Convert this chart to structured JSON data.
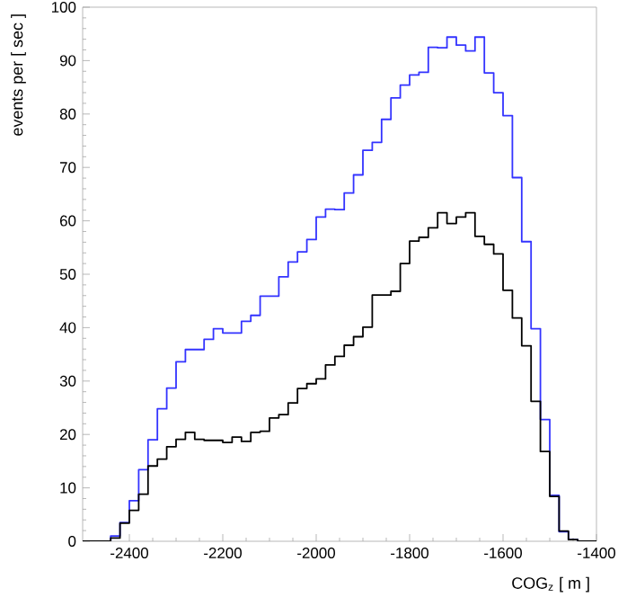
{
  "chart_data": {
    "type": "histogram",
    "xlabel": "COG$_{z}$ [ m ]",
    "ylabel": "events per [ sec ]",
    "bins": [
      -2500,
      -2480,
      -2460,
      -2440,
      -2420,
      -2400,
      -2380,
      -2360,
      -2340,
      -2320,
      -2300,
      -2280,
      -2260,
      -2240,
      -2220,
      -2200,
      -2180,
      -2160,
      -2140,
      -2120,
      -2100,
      -2080,
      -2060,
      -2040,
      -2020,
      -2000,
      -1980,
      -1960,
      -1940,
      -1920,
      -1900,
      -1880,
      -1860,
      -1840,
      -1820,
      -1800,
      -1780,
      -1760,
      -1740,
      -1720,
      -1700,
      -1680,
      -1660,
      -1640,
      -1620,
      -1600,
      -1580,
      -1560,
      -1540,
      -1520,
      -1500,
      -1480,
      -1460,
      -1440,
      -1420,
      -1400
    ],
    "series": [
      {
        "color": "#3333ff",
        "values": [
          0,
          0,
          0,
          1,
          3.5,
          7.6,
          13.4,
          19,
          24.8,
          28.7,
          33.6,
          35.9,
          35.9,
          37.8,
          39.8,
          39,
          39,
          41.2,
          42.3,
          45.9,
          45.9,
          49.5,
          52.3,
          54.2,
          56.5,
          60.7,
          62.2,
          62.1,
          65.2,
          68.6,
          73.2,
          74.7,
          79,
          83,
          85.4,
          87.3,
          87.8,
          92.5,
          92.4,
          94.4,
          92.9,
          91.8,
          94.4,
          87.7,
          84,
          79.7,
          68.1,
          56.1,
          39.8,
          22.8,
          8.6,
          1.8,
          0.3,
          0,
          0
        ]
      },
      {
        "color": "#000000",
        "values": [
          0,
          0,
          0,
          0.6,
          3.4,
          5.8,
          8.8,
          14.1,
          15.4,
          17.7,
          19.1,
          20.4,
          19.1,
          18.9,
          18.9,
          18.5,
          19.5,
          18.7,
          20.4,
          20.6,
          23.1,
          23.7,
          25.9,
          28.6,
          29.5,
          30.4,
          33,
          34.6,
          36.7,
          38.3,
          40.1,
          46.1,
          46.1,
          46.8,
          52,
          56.2,
          56.9,
          58.7,
          61.5,
          59.5,
          60.7,
          61.5,
          57.1,
          55.6,
          53.8,
          47,
          41.8,
          36.6,
          26.2,
          16.8,
          8.4,
          1.9,
          0.3,
          0,
          0
        ]
      }
    ],
    "xlim": [
      -2500,
      -1400
    ],
    "xticks": [
      -2400,
      -2200,
      -2000,
      -1800,
      -1600,
      -1400
    ],
    "ylim": [
      0,
      100
    ],
    "yticks": [
      0,
      10,
      20,
      30,
      40,
      50,
      60,
      70,
      80,
      90,
      100
    ]
  }
}
